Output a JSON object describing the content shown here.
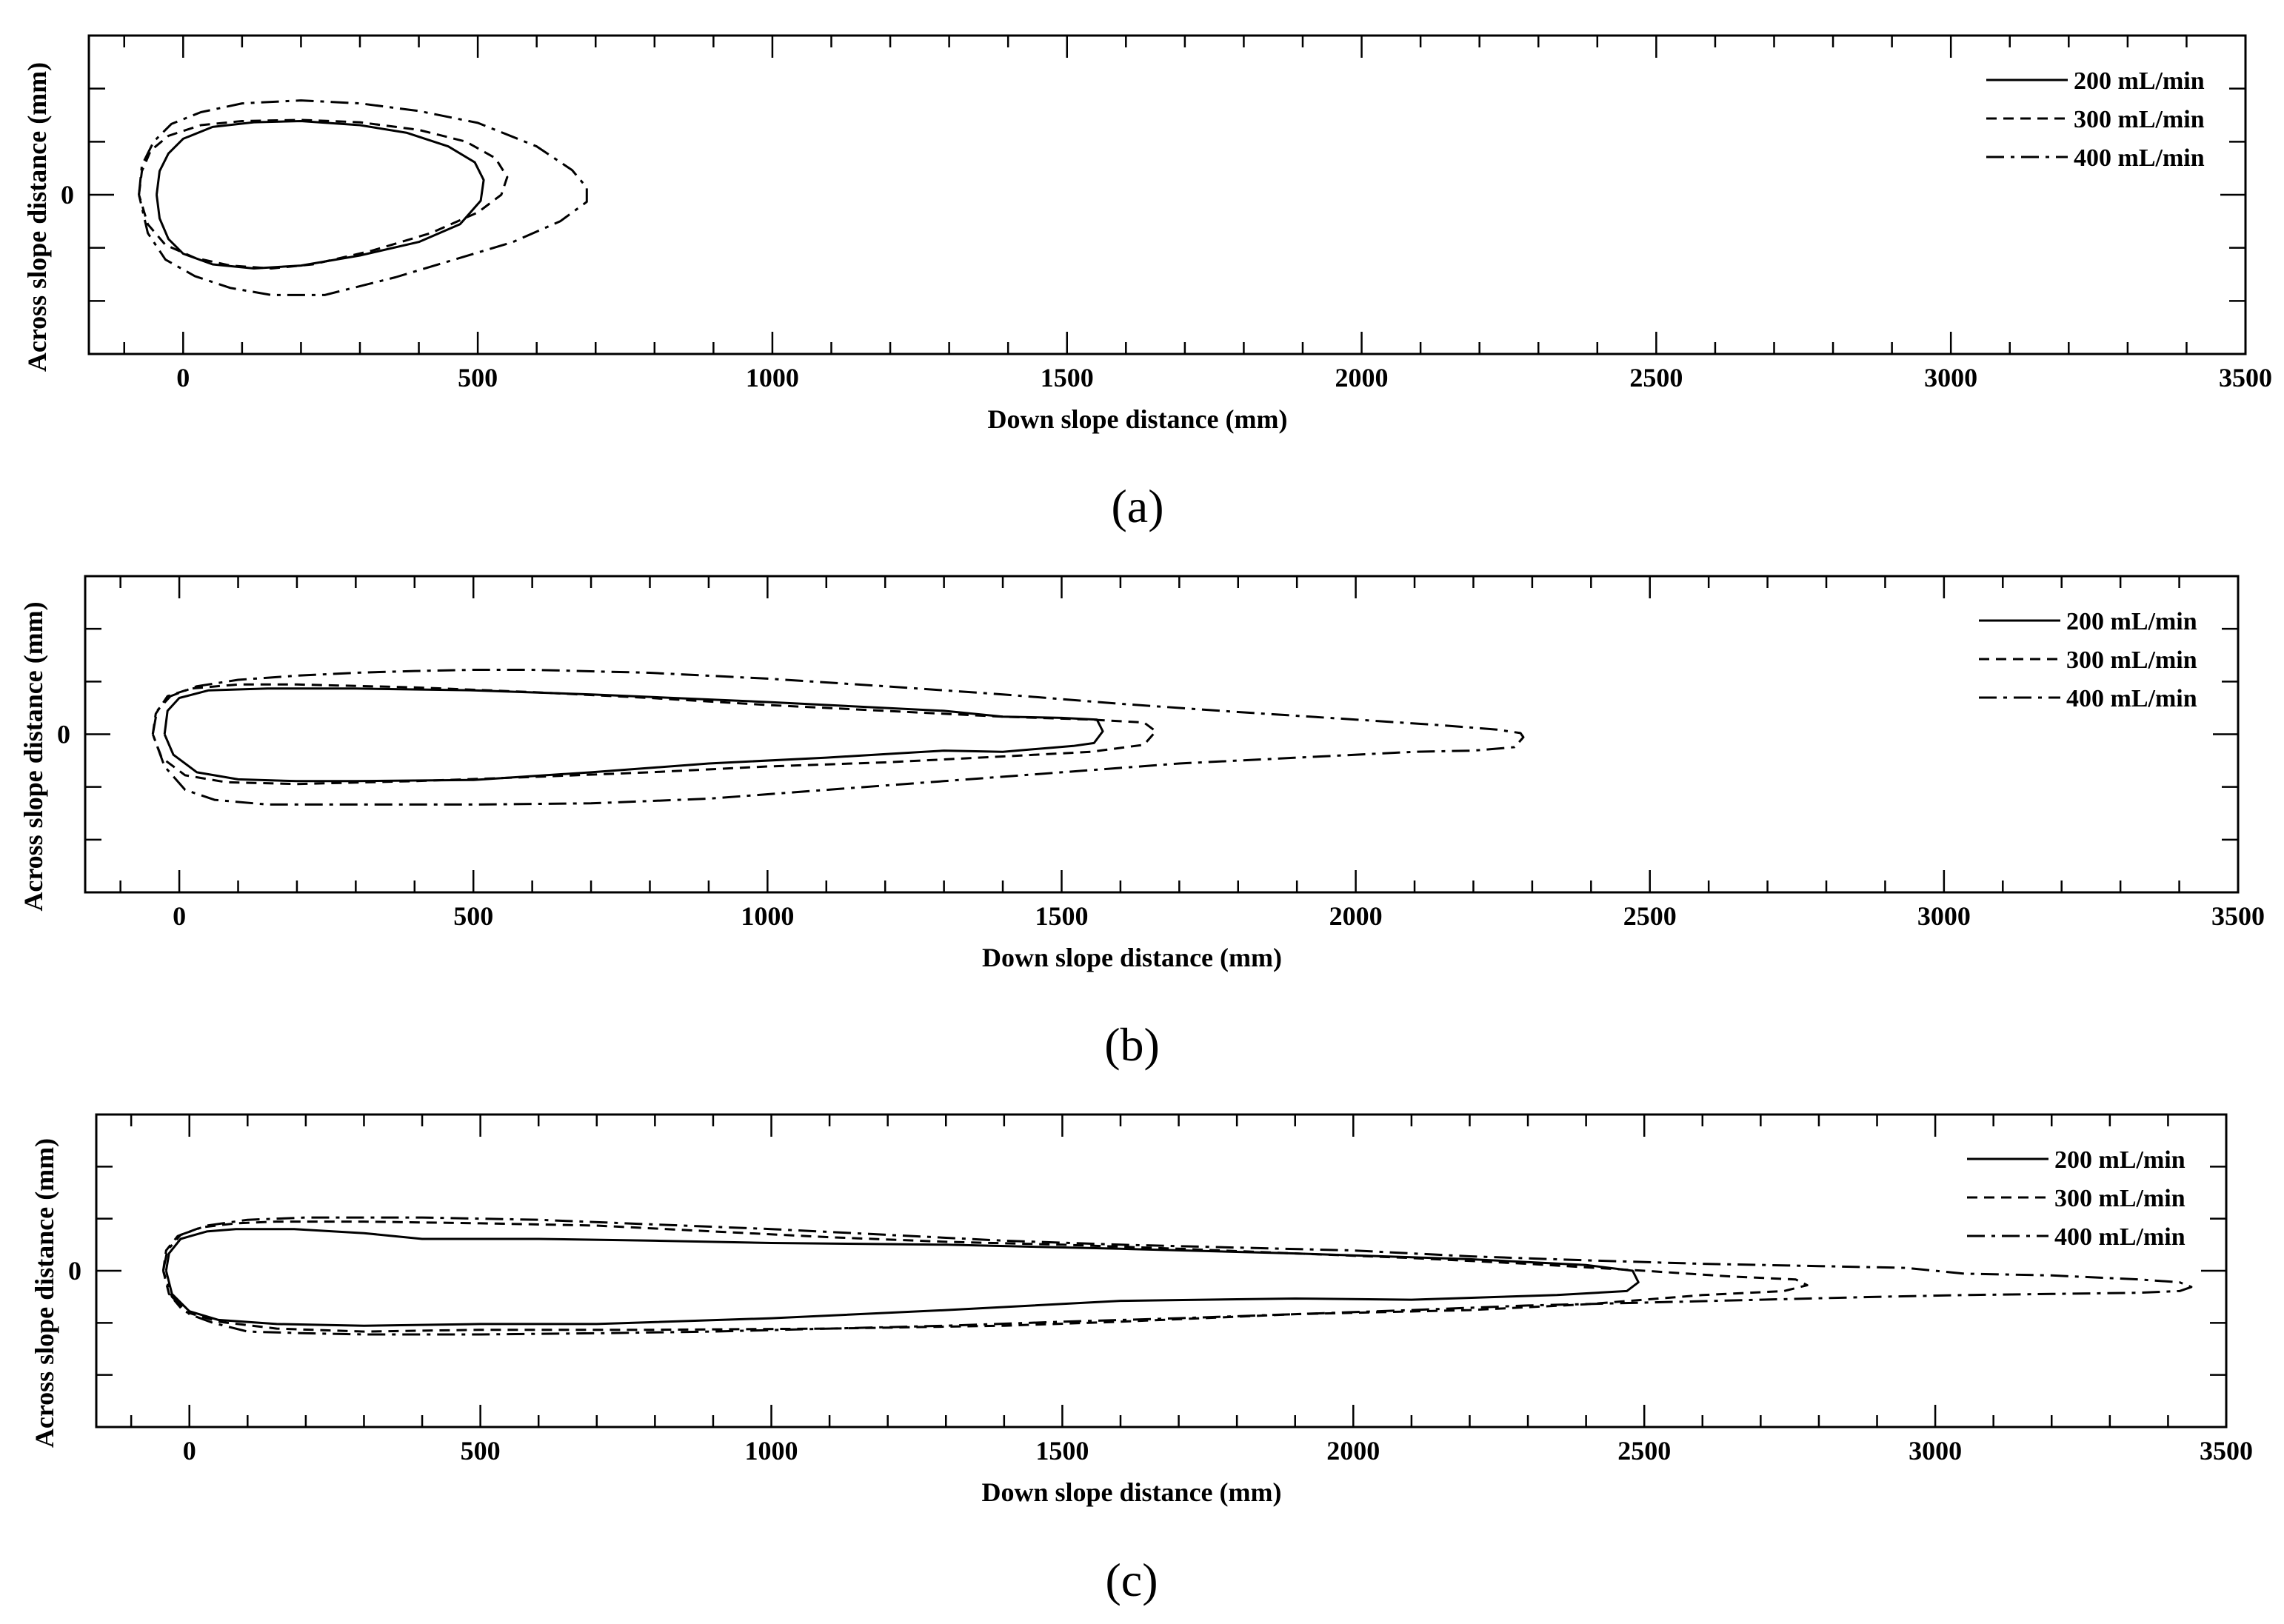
{
  "chart_data": [
    {
      "type": "line",
      "panel_label": "(a)",
      "xlabel": "Down slope distance (mm)",
      "ylabel": "Across slope distance (mm)",
      "xlim": [
        -160,
        3500
      ],
      "ylim": [
        -270,
        270
      ],
      "x_ticks": [
        0,
        500,
        1000,
        1500,
        2000,
        2500,
        3000,
        3500
      ],
      "y_ticks": [
        0
      ],
      "legend_position": "top-right",
      "series": [
        {
          "name": "200 mL/min",
          "style": "solid",
          "x": [
            -45,
            -40,
            -25,
            0,
            50,
            120,
            200,
            300,
            380,
            450,
            495,
            510,
            505,
            470,
            400,
            300,
            200,
            120,
            50,
            0,
            -25,
            -40,
            -45
          ],
          "y": [
            0,
            40,
            70,
            95,
            115,
            123,
            125,
            118,
            105,
            82,
            55,
            25,
            -10,
            -50,
            -80,
            -103,
            -120,
            -125,
            -118,
            -100,
            -75,
            -40,
            0
          ]
        },
        {
          "name": "300 mL/min",
          "style": "dashed",
          "x": [
            -75,
            -70,
            -55,
            -25,
            30,
            100,
            200,
            300,
            400,
            480,
            530,
            550,
            540,
            500,
            420,
            320,
            220,
            150,
            80,
            20,
            -30,
            -60,
            -75
          ],
          "y": [
            0,
            40,
            75,
            100,
            118,
            125,
            127,
            123,
            110,
            90,
            62,
            30,
            0,
            -30,
            -65,
            -95,
            -118,
            -125,
            -120,
            -107,
            -85,
            -50,
            0
          ]
        },
        {
          "name": "400 mL/min",
          "style": "dashdot",
          "x": [
            -75,
            -70,
            -50,
            -20,
            30,
            100,
            200,
            300,
            400,
            500,
            600,
            660,
            685,
            685,
            640,
            560,
            460,
            360,
            240,
            150,
            80,
            20,
            -30,
            -60,
            -75
          ],
          "y": [
            0,
            50,
            90,
            120,
            140,
            155,
            160,
            155,
            142,
            122,
            82,
            42,
            12,
            -12,
            -45,
            -80,
            -110,
            -140,
            -170,
            -170,
            -158,
            -138,
            -110,
            -65,
            0
          ]
        }
      ]
    },
    {
      "type": "line",
      "panel_label": "(b)",
      "xlabel": "Down slope distance (mm)",
      "ylabel": "Across slope distance (mm)",
      "xlim": [
        -160,
        3500
      ],
      "ylim": [
        -270,
        270
      ],
      "x_ticks": [
        0,
        500,
        1000,
        1500,
        2000,
        2500,
        3000,
        3500
      ],
      "y_ticks": [
        0
      ],
      "legend_position": "top-right",
      "series": [
        {
          "name": "200 mL/min",
          "style": "solid",
          "x": [
            -25,
            -20,
            0,
            50,
            150,
            300,
            500,
            700,
            1000,
            1300,
            1400,
            1500,
            1560,
            1570,
            1555,
            1520,
            1400,
            1300,
            1100,
            900,
            700,
            500,
            300,
            200,
            100,
            30,
            -10,
            -25
          ],
          "y": [
            0,
            40,
            62,
            75,
            78,
            78,
            75,
            68,
            55,
            40,
            30,
            28,
            25,
            5,
            -15,
            -20,
            -30,
            -28,
            -40,
            -50,
            -65,
            -78,
            -80,
            -80,
            -77,
            -65,
            -35,
            0
          ]
        },
        {
          "name": "300 mL/min",
          "style": "dashed",
          "x": [
            -45,
            -40,
            -20,
            20,
            100,
            200,
            400,
            600,
            800,
            1000,
            1200,
            1400,
            1550,
            1640,
            1660,
            1640,
            1550,
            1400,
            1200,
            1000,
            800,
            600,
            400,
            200,
            80,
            10,
            -30,
            -45
          ],
          "y": [
            0,
            35,
            65,
            78,
            85,
            85,
            80,
            72,
            62,
            50,
            40,
            30,
            25,
            20,
            5,
            -18,
            -30,
            -38,
            -48,
            -55,
            -65,
            -73,
            -80,
            -85,
            -82,
            -70,
            -40,
            0
          ]
        },
        {
          "name": "400 mL/min",
          "style": "dashdot",
          "x": [
            -45,
            -38,
            -15,
            30,
            100,
            200,
            300,
            400,
            500,
            600,
            800,
            1000,
            1200,
            1400,
            1600,
            1800,
            2000,
            2150,
            2240,
            2280,
            2285,
            2270,
            2200,
            2100,
            1900,
            1700,
            1500,
            1300,
            1100,
            900,
            700,
            500,
            300,
            150,
            60,
            10,
            -25,
            -45
          ],
          "y": [
            0,
            40,
            65,
            82,
            93,
            100,
            105,
            108,
            110,
            110,
            105,
            95,
            82,
            68,
            52,
            38,
            25,
            15,
            8,
            2,
            -5,
            -22,
            -28,
            -30,
            -40,
            -50,
            -65,
            -80,
            -95,
            -110,
            -118,
            -120,
            -120,
            -120,
            -112,
            -95,
            -55,
            0
          ]
        }
      ]
    },
    {
      "type": "line",
      "panel_label": "(c)",
      "xlabel": "Down slope distance (mm)",
      "ylabel": "Across slope distance (mm)",
      "xlim": [
        -160,
        3500
      ],
      "ylim": [
        -270,
        270
      ],
      "x_ticks": [
        0,
        500,
        1000,
        1500,
        2000,
        2500,
        3000,
        3500
      ],
      "y_ticks": [
        0
      ],
      "legend_position": "top-right",
      "series": [
        {
          "name": "200 mL/min",
          "style": "solid",
          "x": [
            -40,
            -35,
            -15,
            30,
            80,
            180,
            300,
            400,
            600,
            800,
            1000,
            1300,
            1600,
            1900,
            2200,
            2400,
            2480,
            2490,
            2470,
            2350,
            2100,
            1900,
            1600,
            1300,
            1000,
            700,
            500,
            300,
            150,
            50,
            0,
            -30,
            -40
          ],
          "y": [
            0,
            30,
            55,
            68,
            72,
            72,
            65,
            55,
            55,
            52,
            48,
            45,
            38,
            30,
            20,
            10,
            0,
            -20,
            -35,
            -42,
            -50,
            -48,
            -52,
            -68,
            -82,
            -92,
            -92,
            -95,
            -92,
            -85,
            -70,
            -40,
            0
          ]
        },
        {
          "name": "300 mL/min",
          "style": "dashed",
          "x": [
            -45,
            -40,
            -20,
            20,
            80,
            150,
            300,
            500,
            700,
            900,
            1100,
            1300,
            1500,
            1700,
            1900,
            2100,
            2300,
            2500,
            2650,
            2760,
            2780,
            2740,
            2600,
            2400,
            2200,
            1900,
            1600,
            1400,
            1100,
            800,
            500,
            300,
            150,
            50,
            -10,
            -35,
            -45
          ],
          "y": [
            0,
            35,
            60,
            75,
            82,
            85,
            85,
            82,
            78,
            68,
            58,
            50,
            45,
            38,
            30,
            22,
            12,
            0,
            -10,
            -15,
            -25,
            -35,
            -42,
            -58,
            -68,
            -75,
            -88,
            -95,
            -100,
            -102,
            -102,
            -105,
            -100,
            -88,
            -70,
            -40,
            0
          ]
        },
        {
          "name": "400 mL/min",
          "style": "dashdot",
          "x": [
            -45,
            -38,
            -15,
            30,
            100,
            200,
            400,
            600,
            800,
            1000,
            1200,
            1400,
            1600,
            1800,
            2000,
            2200,
            2400,
            2600,
            2800,
            2950,
            3000,
            3050,
            3200,
            3350,
            3420,
            3440,
            3420,
            3350,
            3200,
            3050,
            2900,
            2700,
            2500,
            2300,
            2100,
            1900,
            1700,
            1500,
            1300,
            1100,
            900,
            700,
            500,
            300,
            200,
            100,
            40,
            0,
            -30,
            -45
          ],
          "y": [
            0,
            35,
            62,
            78,
            88,
            92,
            92,
            88,
            80,
            72,
            62,
            52,
            45,
            40,
            35,
            25,
            18,
            12,
            8,
            5,
            0,
            -5,
            -8,
            -15,
            -20,
            -28,
            -35,
            -38,
            -40,
            -42,
            -45,
            -50,
            -55,
            -60,
            -68,
            -75,
            -82,
            -88,
            -95,
            -100,
            -105,
            -108,
            -110,
            -110,
            -108,
            -105,
            -90,
            -75,
            -45,
            0
          ]
        }
      ]
    }
  ]
}
